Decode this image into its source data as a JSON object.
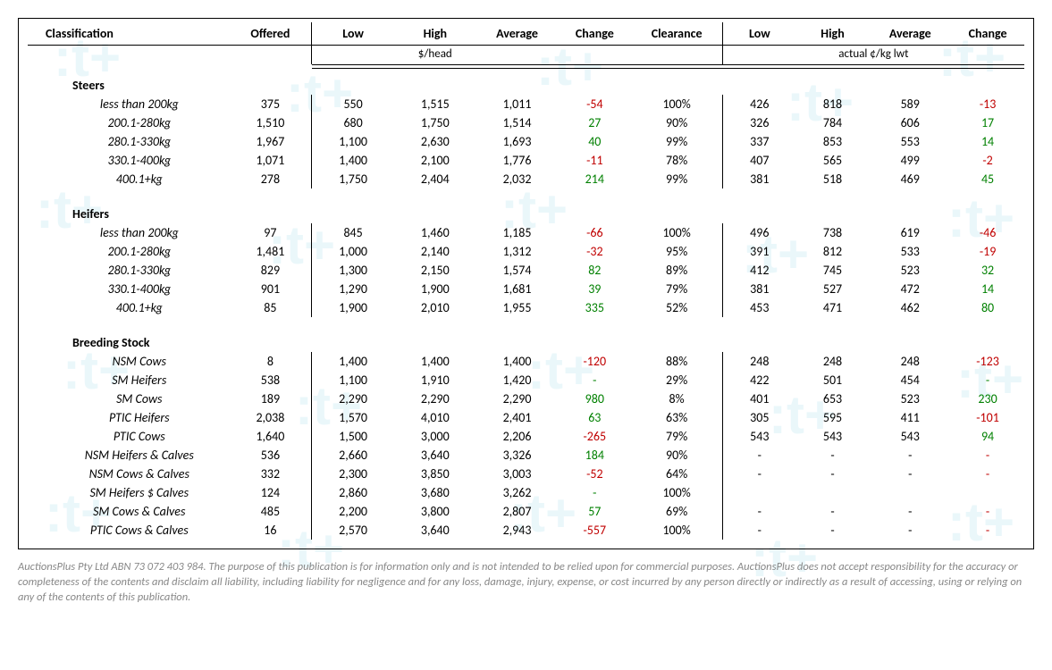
{
  "headers": {
    "classification": "Classification",
    "offered": "Offered",
    "low1": "Low",
    "high1": "High",
    "avg1": "Average",
    "change1": "Change",
    "clearance": "Clearance",
    "low2": "Low",
    "high2": "High",
    "avg2": "Average",
    "change2": "Change",
    "sub1": "$/head",
    "sub2": "actual ¢/kg lwt"
  },
  "sections": [
    {
      "title": "Steers",
      "rows": [
        {
          "c": "less than 200kg",
          "off": "375",
          "l1": "550",
          "h1": "1,515",
          "a1": "1,011",
          "ch1": "-54",
          "cl": "100%",
          "l2": "426",
          "h2": "818",
          "a2": "589",
          "ch2": "-13"
        },
        {
          "c": "200.1-280kg",
          "off": "1,510",
          "l1": "680",
          "h1": "1,750",
          "a1": "1,514",
          "ch1": "27",
          "cl": "90%",
          "l2": "326",
          "h2": "784",
          "a2": "606",
          "ch2": "17"
        },
        {
          "c": "280.1-330kg",
          "off": "1,967",
          "l1": "1,100",
          "h1": "2,630",
          "a1": "1,693",
          "ch1": "40",
          "cl": "99%",
          "l2": "337",
          "h2": "853",
          "a2": "553",
          "ch2": "14"
        },
        {
          "c": "330.1-400kg",
          "off": "1,071",
          "l1": "1,400",
          "h1": "2,100",
          "a1": "1,776",
          "ch1": "-11",
          "cl": "78%",
          "l2": "407",
          "h2": "565",
          "a2": "499",
          "ch2": "-2"
        },
        {
          "c": "400.1+kg",
          "off": "278",
          "l1": "1,750",
          "h1": "2,404",
          "a1": "2,032",
          "ch1": "214",
          "cl": "99%",
          "l2": "381",
          "h2": "518",
          "a2": "469",
          "ch2": "45"
        }
      ]
    },
    {
      "title": "Heifers",
      "rows": [
        {
          "c": "less than 200kg",
          "off": "97",
          "l1": "845",
          "h1": "1,460",
          "a1": "1,185",
          "ch1": "-66",
          "cl": "100%",
          "l2": "496",
          "h2": "738",
          "a2": "619",
          "ch2": "-46"
        },
        {
          "c": "200.1-280kg",
          "off": "1,481",
          "l1": "1,000",
          "h1": "2,140",
          "a1": "1,312",
          "ch1": "-32",
          "cl": "95%",
          "l2": "391",
          "h2": "812",
          "a2": "533",
          "ch2": "-19"
        },
        {
          "c": "280.1-330kg",
          "off": "829",
          "l1": "1,300",
          "h1": "2,150",
          "a1": "1,574",
          "ch1": "82",
          "cl": "89%",
          "l2": "412",
          "h2": "745",
          "a2": "523",
          "ch2": "32"
        },
        {
          "c": "330.1-400kg",
          "off": "901",
          "l1": "1,290",
          "h1": "1,900",
          "a1": "1,681",
          "ch1": "39",
          "cl": "79%",
          "l2": "381",
          "h2": "527",
          "a2": "472",
          "ch2": "14"
        },
        {
          "c": "400.1+kg",
          "off": "85",
          "l1": "1,900",
          "h1": "2,010",
          "a1": "1,955",
          "ch1": "335",
          "cl": "52%",
          "l2": "453",
          "h2": "471",
          "a2": "462",
          "ch2": "80"
        }
      ]
    },
    {
      "title": "Breeding Stock",
      "rows": [
        {
          "c": "NSM Cows",
          "off": "8",
          "l1": "1,400",
          "h1": "1,400",
          "a1": "1,400",
          "ch1": "-120",
          "cl": "88%",
          "l2": "248",
          "h2": "248",
          "a2": "248",
          "ch2": "-123"
        },
        {
          "c": "SM Heifers",
          "off": "538",
          "l1": "1,100",
          "h1": "1,910",
          "a1": "1,420",
          "ch1": "-",
          "cl": "29%",
          "l2": "422",
          "h2": "501",
          "a2": "454",
          "ch2": "-"
        },
        {
          "c": "SM Cows",
          "off": "189",
          "l1": "2,290",
          "h1": "2,290",
          "a1": "2,290",
          "ch1": "980",
          "cl": "8%",
          "l2": "401",
          "h2": "653",
          "a2": "523",
          "ch2": "230"
        },
        {
          "c": "PTIC Heifers",
          "off": "2,038",
          "l1": "1,570",
          "h1": "4,010",
          "a1": "2,401",
          "ch1": "63",
          "cl": "63%",
          "l2": "305",
          "h2": "595",
          "a2": "411",
          "ch2": "-101"
        },
        {
          "c": "PTIC Cows",
          "off": "1,640",
          "l1": "1,500",
          "h1": "3,000",
          "a1": "2,206",
          "ch1": "-265",
          "cl": "79%",
          "l2": "543",
          "h2": "543",
          "a2": "543",
          "ch2": "94"
        },
        {
          "c": "NSM Heifers & Calves",
          "off": "536",
          "l1": "2,660",
          "h1": "3,640",
          "a1": "3,326",
          "ch1": "184",
          "cl": "90%",
          "l2": "-",
          "h2": "-",
          "a2": "-",
          "ch2": "-"
        },
        {
          "c": "NSM Cows & Calves",
          "off": "332",
          "l1": "2,300",
          "h1": "3,850",
          "a1": "3,003",
          "ch1": "-52",
          "cl": "64%",
          "l2": "-",
          "h2": "-",
          "a2": "-",
          "ch2": "-"
        },
        {
          "c": "SM Heifers $ Calves",
          "off": "124",
          "l1": "2,860",
          "h1": "3,680",
          "a1": "3,262",
          "ch1": "-",
          "cl": "100%",
          "l2": "",
          "h2": "",
          "a2": "",
          "ch2": ""
        },
        {
          "c": "SM Cows & Calves",
          "off": "485",
          "l1": "2,200",
          "h1": "3,800",
          "a1": "2,807",
          "ch1": "57",
          "cl": "69%",
          "l2": "-",
          "h2": "-",
          "a2": "-",
          "ch2": "-"
        },
        {
          "c": "PTIC Cows & Calves",
          "off": "16",
          "l1": "2,570",
          "h1": "3,640",
          "a1": "2,943",
          "ch1": "-557",
          "cl": "100%",
          "l2": "-",
          "h2": "-",
          "a2": "-",
          "ch2": "-"
        }
      ]
    }
  ],
  "footer": "AuctionsPlus Pty Ltd ABN 73 072 403 984. The purpose of this publication is for information only and is not intended to be relied upon for commercial purposes. AuctionsPlus does not accept responsibility for the accuracy or completeness of the contents and disclaim all liability, including liability for negligence and for any loss, damage, injury, expense, or cost incurred by any person directly or indirectly as a result of accessing, using or relying on any of the contents of this publication.",
  "style": {
    "neg_color": "#c00000",
    "pos_color": "#008000",
    "text_color": "#000000",
    "footer_color": "#888888",
    "watermark_color": "#5bc0de",
    "font": "Calibri, Arial, sans-serif",
    "base_fontsize": 14
  },
  "watermark_text": ":t+"
}
